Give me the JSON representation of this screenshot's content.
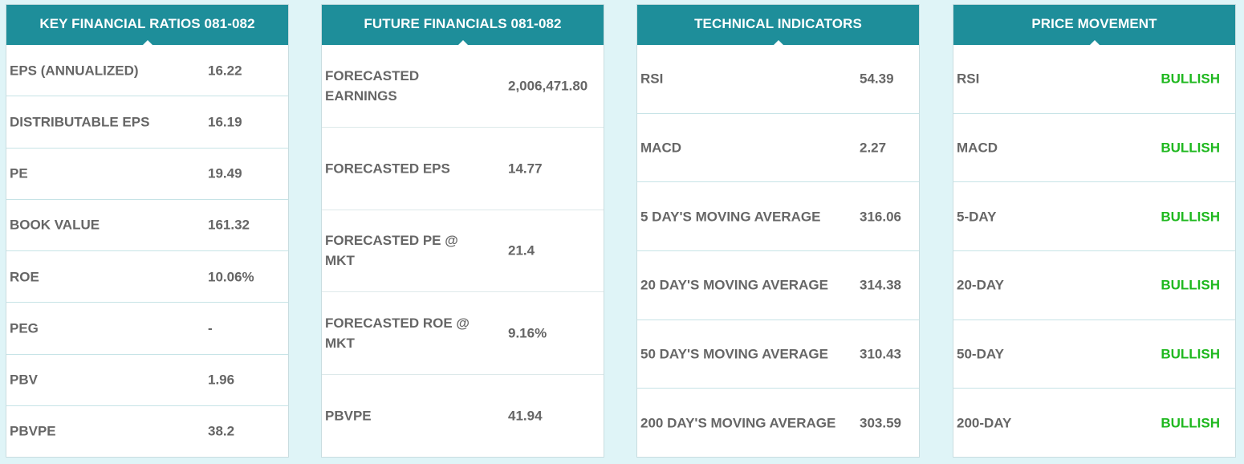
{
  "panels": [
    {
      "title": "KEY FINANCIAL RATIOS 081-082",
      "rows": [
        {
          "label": "EPS (ANNUALIZED)",
          "value": "16.22"
        },
        {
          "label": "DISTRIBUTABLE EPS",
          "value": "16.19"
        },
        {
          "label": "PE",
          "value": "19.49"
        },
        {
          "label": "BOOK VALUE",
          "value": "161.32"
        },
        {
          "label": "ROE",
          "value": "10.06%"
        },
        {
          "label": "PEG",
          "value": "-"
        },
        {
          "label": "PBV",
          "value": "1.96"
        },
        {
          "label": "PBVPE",
          "value": "38.2"
        }
      ]
    },
    {
      "title": "FUTURE FINANCIALS 081-082",
      "rows": [
        {
          "label": "FORECASTED EARNINGS",
          "value": "2,006,471.80"
        },
        {
          "label": "FORECASTED EPS",
          "value": "14.77"
        },
        {
          "label": "FORECASTED PE @ MKT",
          "value": "21.4"
        },
        {
          "label": "FORECASTED ROE @ MKT",
          "value": "9.16%"
        },
        {
          "label": "PBVPE",
          "value": "41.94"
        }
      ]
    },
    {
      "title": "TECHNICAL INDICATORS",
      "rows": [
        {
          "label": "RSI",
          "value": "54.39"
        },
        {
          "label": "MACD",
          "value": "2.27"
        },
        {
          "label": "5 DAY'S MOVING AVERAGE",
          "value": "316.06"
        },
        {
          "label": "20 DAY'S MOVING AVERAGE",
          "value": "314.38"
        },
        {
          "label": "50 DAY'S MOVING AVERAGE",
          "value": "310.43"
        },
        {
          "label": "200 DAY'S MOVING AVERAGE",
          "value": "303.59"
        }
      ]
    },
    {
      "title": "PRICE MOVEMENT",
      "rows": [
        {
          "label": "RSI",
          "value": "BULLISH"
        },
        {
          "label": "MACD",
          "value": "BULLISH"
        },
        {
          "label": "5-DAY",
          "value": "BULLISH"
        },
        {
          "label": "20-DAY",
          "value": "BULLISH"
        },
        {
          "label": "50-DAY",
          "value": "BULLISH"
        },
        {
          "label": "200-DAY",
          "value": "BULLISH"
        }
      ]
    }
  ],
  "colors": {
    "header_bg": "#1e8e9a",
    "page_bg": "#dff4f7",
    "text": "#666666",
    "bullish": "#1fb81f"
  }
}
